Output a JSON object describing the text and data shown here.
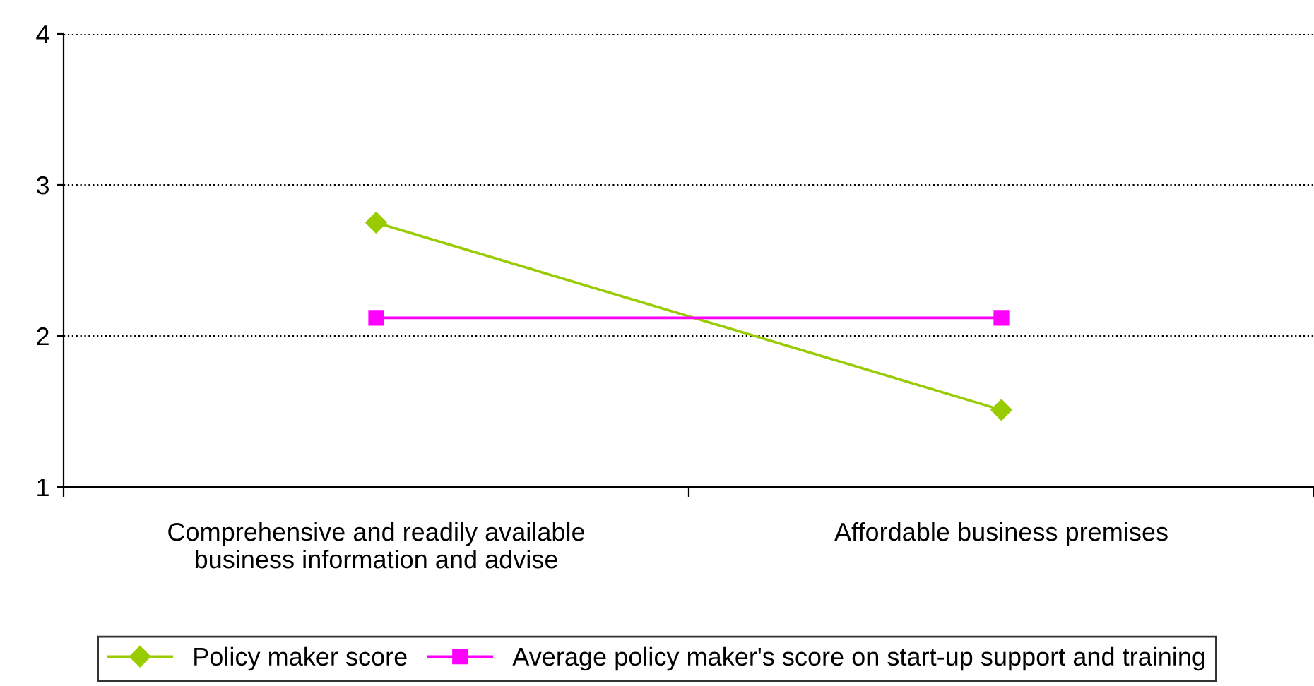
{
  "chart_data": {
    "type": "line",
    "categories": [
      "Comprehensive and readily available\nbusiness information and advise",
      "Affordable business premises"
    ],
    "series": [
      {
        "name": "Policy maker score",
        "color": "#99cc00",
        "marker": "diamond",
        "values": [
          2.75,
          1.51
        ]
      },
      {
        "name": "Average policy maker's score on start-up support and training",
        "color": "#ff00ff",
        "marker": "square",
        "values": [
          2.12,
          2.12
        ]
      }
    ],
    "ylim": [
      1,
      4
    ],
    "yticks": [
      1,
      2,
      3,
      4
    ],
    "grid": "y",
    "legend": "bottom",
    "line_style": "solid"
  }
}
